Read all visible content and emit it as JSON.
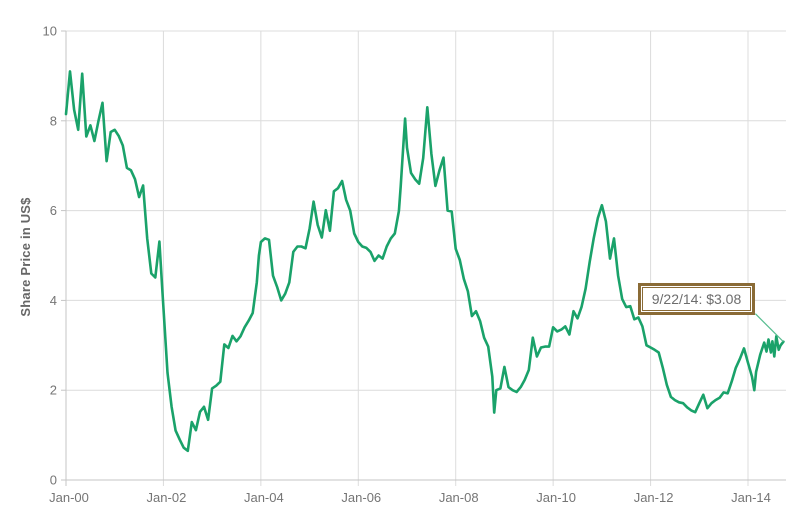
{
  "colors": {
    "line": "#1aa26a",
    "leader_line": "#57bd90",
    "grid": "#dcdcdc",
    "axis": "#c5c5c5",
    "tick_text": "#757575",
    "axis_title_text": "#666666",
    "callout_border": "#8a6b36",
    "callout_text": "#6d6d6d",
    "background": "#ffffff"
  },
  "chart_data": {
    "type": "line",
    "title": "",
    "xlabel": "",
    "ylabel": "Share Price in US$",
    "ylim": [
      0,
      10
    ],
    "xlim": [
      2000,
      2014.79
    ],
    "grid": true,
    "legend": "none",
    "y_ticks": [
      0,
      2,
      4,
      6,
      8,
      10
    ],
    "x_ticks": [
      {
        "label": "Jan-00",
        "year": 2000
      },
      {
        "label": "Jan-02",
        "year": 2002
      },
      {
        "label": "Jan-04",
        "year": 2004
      },
      {
        "label": "Jan-06",
        "year": 2006
      },
      {
        "label": "Jan-08",
        "year": 2008
      },
      {
        "label": "Jan-10",
        "year": 2010
      },
      {
        "label": "Jan-12",
        "year": 2012
      },
      {
        "label": "Jan-14",
        "year": 2014
      }
    ],
    "annotation": {
      "label": "9/22/14: $3.08",
      "date": "9/22/14",
      "value": 3.08,
      "x": 2014.726,
      "y": 3.08
    },
    "series": [
      {
        "name": "Share Price",
        "points": [
          [
            2000.0,
            8.15
          ],
          [
            2000.083,
            9.1
          ],
          [
            2000.167,
            8.25
          ],
          [
            2000.25,
            7.8
          ],
          [
            2000.333,
            9.05
          ],
          [
            2000.417,
            7.65
          ],
          [
            2000.5,
            7.9
          ],
          [
            2000.583,
            7.55
          ],
          [
            2000.667,
            8.0
          ],
          [
            2000.75,
            8.4
          ],
          [
            2000.833,
            7.1
          ],
          [
            2000.917,
            7.75
          ],
          [
            2001.0,
            7.8
          ],
          [
            2001.083,
            7.66
          ],
          [
            2001.167,
            7.45
          ],
          [
            2001.25,
            6.95
          ],
          [
            2001.333,
            6.9
          ],
          [
            2001.417,
            6.7
          ],
          [
            2001.5,
            6.3
          ],
          [
            2001.583,
            6.56
          ],
          [
            2001.667,
            5.38
          ],
          [
            2001.75,
            4.6
          ],
          [
            2001.833,
            4.51
          ],
          [
            2001.917,
            5.31
          ],
          [
            2001.98,
            4.17
          ],
          [
            2002.083,
            2.39
          ],
          [
            2002.167,
            1.63
          ],
          [
            2002.25,
            1.1
          ],
          [
            2002.333,
            0.9
          ],
          [
            2002.417,
            0.72
          ],
          [
            2002.5,
            0.65
          ],
          [
            2002.583,
            1.29
          ],
          [
            2002.667,
            1.11
          ],
          [
            2002.75,
            1.52
          ],
          [
            2002.833,
            1.63
          ],
          [
            2002.917,
            1.34
          ],
          [
            2003.0,
            2.04
          ],
          [
            2003.083,
            2.1
          ],
          [
            2003.167,
            2.19
          ],
          [
            2003.25,
            3.02
          ],
          [
            2003.333,
            2.94
          ],
          [
            2003.417,
            3.21
          ],
          [
            2003.5,
            3.09
          ],
          [
            2003.583,
            3.2
          ],
          [
            2003.667,
            3.4
          ],
          [
            2003.75,
            3.55
          ],
          [
            2003.833,
            3.72
          ],
          [
            2003.917,
            4.4
          ],
          [
            2003.96,
            5.0
          ],
          [
            2004.0,
            5.3
          ],
          [
            2004.083,
            5.38
          ],
          [
            2004.167,
            5.35
          ],
          [
            2004.25,
            4.55
          ],
          [
            2004.333,
            4.3
          ],
          [
            2004.417,
            4.0
          ],
          [
            2004.5,
            4.15
          ],
          [
            2004.583,
            4.4
          ],
          [
            2004.667,
            5.08
          ],
          [
            2004.75,
            5.2
          ],
          [
            2004.833,
            5.2
          ],
          [
            2004.917,
            5.16
          ],
          [
            2005.0,
            5.6
          ],
          [
            2005.083,
            6.2
          ],
          [
            2005.167,
            5.68
          ],
          [
            2005.25,
            5.4
          ],
          [
            2005.333,
            6.01
          ],
          [
            2005.417,
            5.55
          ],
          [
            2005.5,
            6.43
          ],
          [
            2005.583,
            6.5
          ],
          [
            2005.667,
            6.66
          ],
          [
            2005.75,
            6.24
          ],
          [
            2005.833,
            6.0
          ],
          [
            2005.917,
            5.49
          ],
          [
            2006.0,
            5.3
          ],
          [
            2006.083,
            5.2
          ],
          [
            2006.167,
            5.17
          ],
          [
            2006.25,
            5.08
          ],
          [
            2006.333,
            4.88
          ],
          [
            2006.417,
            5.0
          ],
          [
            2006.5,
            4.93
          ],
          [
            2006.583,
            5.2
          ],
          [
            2006.667,
            5.38
          ],
          [
            2006.75,
            5.49
          ],
          [
            2006.833,
            5.99
          ],
          [
            2006.87,
            6.54
          ],
          [
            2006.917,
            7.34
          ],
          [
            2006.96,
            8.05
          ],
          [
            2007.0,
            7.4
          ],
          [
            2007.083,
            6.84
          ],
          [
            2007.167,
            6.7
          ],
          [
            2007.25,
            6.6
          ],
          [
            2007.333,
            7.17
          ],
          [
            2007.417,
            8.3
          ],
          [
            2007.5,
            7.26
          ],
          [
            2007.583,
            6.55
          ],
          [
            2007.667,
            6.9
          ],
          [
            2007.75,
            7.18
          ],
          [
            2007.833,
            6.0
          ],
          [
            2007.917,
            5.98
          ],
          [
            2008.0,
            5.15
          ],
          [
            2008.083,
            4.9
          ],
          [
            2008.167,
            4.48
          ],
          [
            2008.25,
            4.2
          ],
          [
            2008.333,
            3.65
          ],
          [
            2008.417,
            3.76
          ],
          [
            2008.5,
            3.54
          ],
          [
            2008.583,
            3.17
          ],
          [
            2008.667,
            2.97
          ],
          [
            2008.75,
            2.3
          ],
          [
            2008.79,
            1.5
          ],
          [
            2008.833,
            2.0
          ],
          [
            2008.917,
            2.04
          ],
          [
            2009.0,
            2.52
          ],
          [
            2009.083,
            2.07
          ],
          [
            2009.167,
            2.0
          ],
          [
            2009.25,
            1.96
          ],
          [
            2009.333,
            2.07
          ],
          [
            2009.417,
            2.23
          ],
          [
            2009.5,
            2.45
          ],
          [
            2009.583,
            3.17
          ],
          [
            2009.667,
            2.75
          ],
          [
            2009.75,
            2.95
          ],
          [
            2009.833,
            2.97
          ],
          [
            2009.917,
            2.97
          ],
          [
            2010.0,
            3.4
          ],
          [
            2010.083,
            3.31
          ],
          [
            2010.167,
            3.35
          ],
          [
            2010.25,
            3.42
          ],
          [
            2010.333,
            3.24
          ],
          [
            2010.417,
            3.76
          ],
          [
            2010.5,
            3.6
          ],
          [
            2010.583,
            3.85
          ],
          [
            2010.667,
            4.26
          ],
          [
            2010.75,
            4.86
          ],
          [
            2010.833,
            5.38
          ],
          [
            2010.917,
            5.83
          ],
          [
            2011.0,
            6.12
          ],
          [
            2011.083,
            5.76
          ],
          [
            2011.167,
            4.93
          ],
          [
            2011.25,
            5.38
          ],
          [
            2011.333,
            4.55
          ],
          [
            2011.417,
            4.03
          ],
          [
            2011.5,
            3.85
          ],
          [
            2011.583,
            3.87
          ],
          [
            2011.667,
            3.58
          ],
          [
            2011.75,
            3.62
          ],
          [
            2011.833,
            3.42
          ],
          [
            2011.917,
            3.0
          ],
          [
            2012.0,
            2.95
          ],
          [
            2012.083,
            2.9
          ],
          [
            2012.167,
            2.84
          ],
          [
            2012.25,
            2.5
          ],
          [
            2012.333,
            2.12
          ],
          [
            2012.417,
            1.85
          ],
          [
            2012.5,
            1.78
          ],
          [
            2012.583,
            1.73
          ],
          [
            2012.667,
            1.71
          ],
          [
            2012.75,
            1.62
          ],
          [
            2012.833,
            1.55
          ],
          [
            2012.917,
            1.51
          ],
          [
            2013.0,
            1.71
          ],
          [
            2013.083,
            1.9
          ],
          [
            2013.167,
            1.6
          ],
          [
            2013.25,
            1.71
          ],
          [
            2013.333,
            1.78
          ],
          [
            2013.417,
            1.83
          ],
          [
            2013.5,
            1.95
          ],
          [
            2013.583,
            1.93
          ],
          [
            2013.667,
            2.2
          ],
          [
            2013.75,
            2.5
          ],
          [
            2013.833,
            2.7
          ],
          [
            2013.917,
            2.93
          ],
          [
            2014.0,
            2.61
          ],
          [
            2014.083,
            2.3
          ],
          [
            2014.13,
            2.0
          ],
          [
            2014.167,
            2.41
          ],
          [
            2014.25,
            2.79
          ],
          [
            2014.333,
            3.06
          ],
          [
            2014.38,
            2.86
          ],
          [
            2014.42,
            3.13
          ],
          [
            2014.47,
            2.84
          ],
          [
            2014.5,
            3.09
          ],
          [
            2014.54,
            2.75
          ],
          [
            2014.58,
            3.2
          ],
          [
            2014.63,
            2.9
          ],
          [
            2014.67,
            3.0
          ],
          [
            2014.726,
            3.08
          ]
        ]
      }
    ]
  }
}
